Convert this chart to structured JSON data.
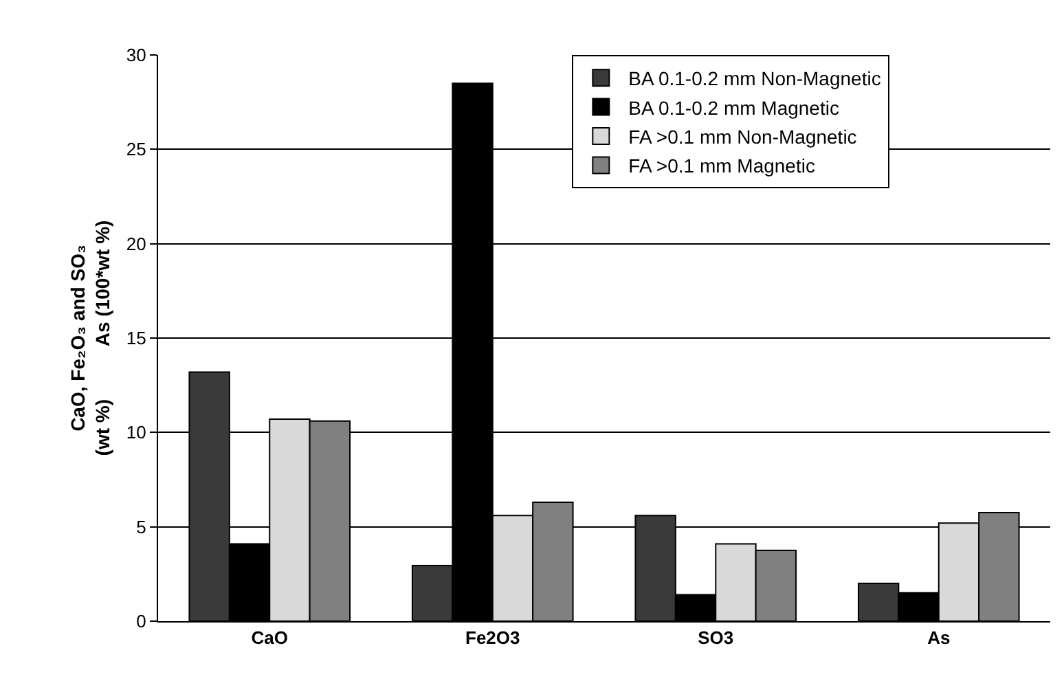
{
  "chart_data": {
    "type": "bar",
    "ylabel": "CaO, Fe₂O₃ and SO₃\n(wt %)          As (100*wt %)",
    "categories": [
      "CaO",
      "Fe2O3",
      "SO3",
      "As"
    ],
    "series": [
      {
        "name": "BA 0.1-0.2 mm Non-Magnetic",
        "color": "#3a3a3a",
        "values": [
          13.2,
          2.95,
          5.6,
          2.0
        ]
      },
      {
        "name": "BA 0.1-0.2 mm Magnetic",
        "color": "#000000",
        "values": [
          4.1,
          28.5,
          1.4,
          1.5
        ]
      },
      {
        "name": "FA >0.1 mm Non-Magnetic",
        "color": "#d9d9d9",
        "values": [
          10.7,
          5.6,
          4.1,
          5.2
        ]
      },
      {
        "name": "FA >0.1 mm Magnetic",
        "color": "#808080",
        "values": [
          10.6,
          6.3,
          3.75,
          5.75
        ]
      }
    ],
    "ylim": [
      0,
      30
    ],
    "yticks": [
      0,
      5,
      10,
      15,
      20,
      25,
      30
    ],
    "grid": "y",
    "legend": "top right"
  }
}
